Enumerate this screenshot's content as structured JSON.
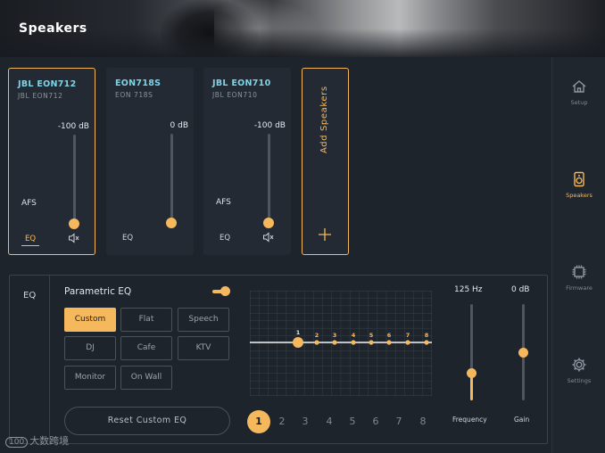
{
  "header": {
    "title": "Speakers"
  },
  "nav": [
    {
      "label": "Setup",
      "icon": "home-icon",
      "active": false
    },
    {
      "label": "Speakers",
      "icon": "speaker-icon",
      "active": true
    },
    {
      "label": "Firmware",
      "icon": "chip-icon",
      "active": false
    },
    {
      "label": "Settings",
      "icon": "gear-icon",
      "active": false
    }
  ],
  "speakers": [
    {
      "name": "JBL EON712",
      "model": "JBL EON712",
      "level": "-100 dB",
      "afs": "AFS",
      "eq": "EQ",
      "selected": true
    },
    {
      "name": "EON718S",
      "model": "EON 718S",
      "level": "0 dB",
      "afs": "",
      "eq": "EQ",
      "selected": false
    },
    {
      "name": "JBL EON710",
      "model": "JBL EON710",
      "level": "-100 dB",
      "afs": "AFS",
      "eq": "EQ",
      "selected": false
    }
  ],
  "add_speakers": {
    "label": "Add Speakers",
    "icon": "plus-icon"
  },
  "eq": {
    "tab_label": "EQ",
    "title": "Parametric EQ",
    "toggle_on": true,
    "presets": [
      "Custom",
      "Flat",
      "Speech",
      "DJ",
      "Cafe",
      "KTV",
      "Monitor",
      "On Wall"
    ],
    "selected_preset": "Custom",
    "reset_label": "Reset Custom EQ",
    "graph_points": [
      "1",
      "2",
      "3",
      "4",
      "5",
      "6",
      "7",
      "8"
    ],
    "bands": [
      "1",
      "2",
      "3",
      "4",
      "5",
      "6",
      "7",
      "8"
    ],
    "selected_band": "1",
    "frequency": {
      "label": "Frequency",
      "value": "125 Hz",
      "level": 0.28
    },
    "gain": {
      "label": "Gain",
      "value": "0 dB",
      "level": 0.5
    }
  },
  "watermark": {
    "logo": "100",
    "text": "大数跨境"
  },
  "colors": {
    "accent": "#f6b85c",
    "speaker_name": "#7fd3e6",
    "background": "#1e242c"
  }
}
